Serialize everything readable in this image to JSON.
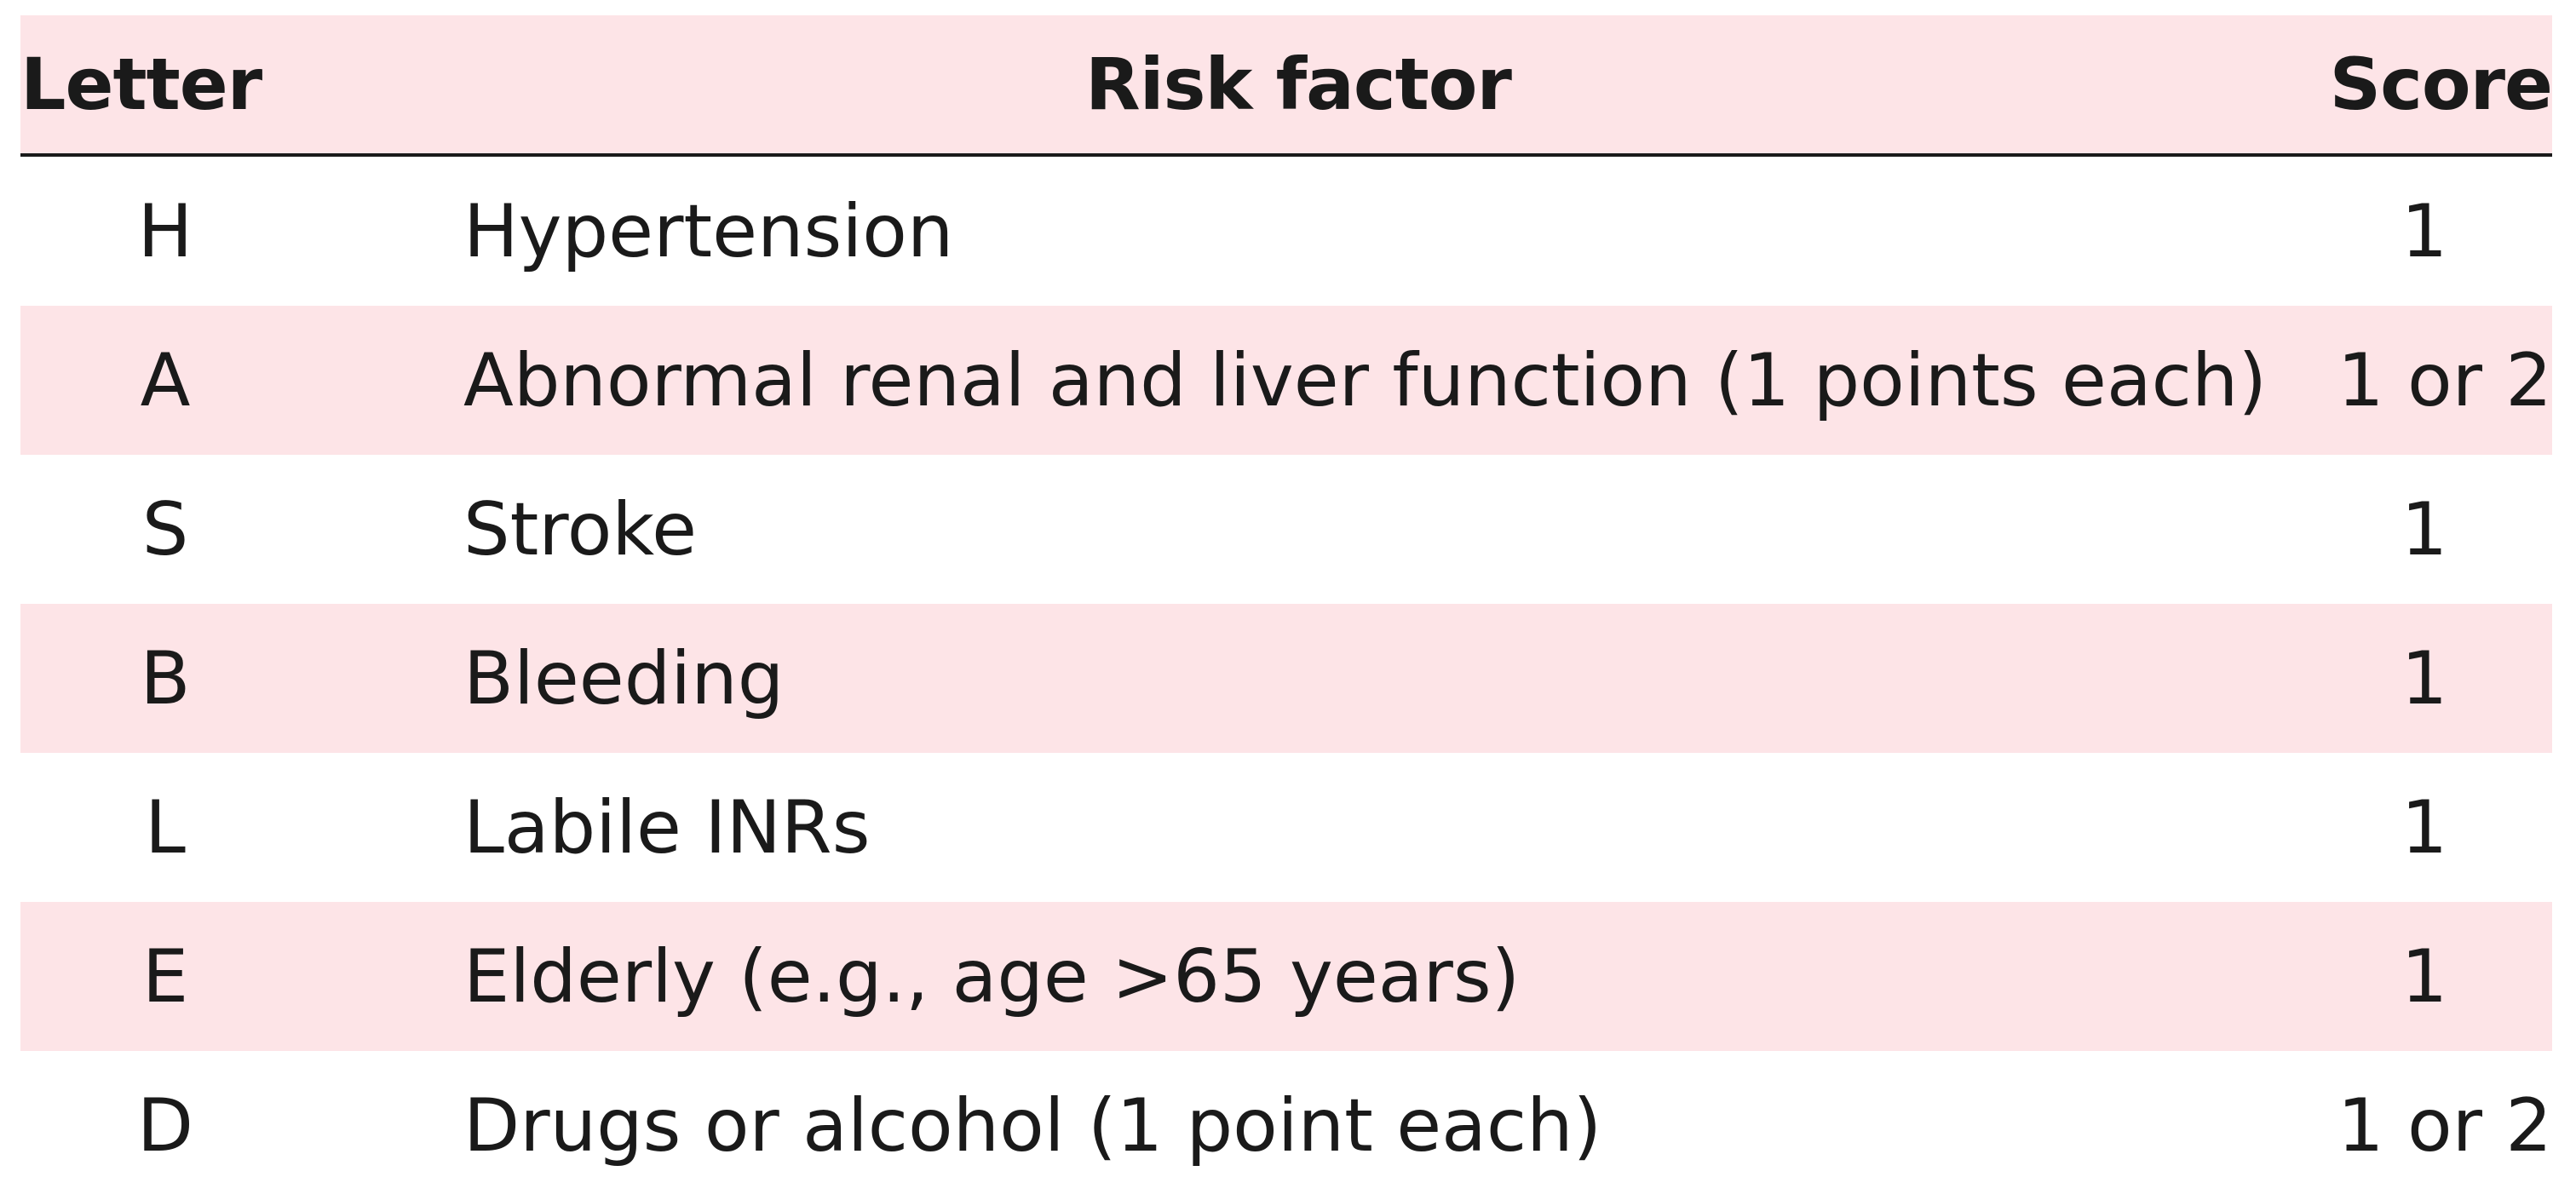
{
  "table": {
    "headers": {
      "letter": "Letter",
      "risk_factor": "Risk factor",
      "score": "Score"
    },
    "rows": [
      {
        "letter": "H",
        "risk_factor": "Hypertension",
        "score": "1"
      },
      {
        "letter": "A",
        "risk_factor": "Abnormal renal and liver function (1 points each)",
        "score": "1 or 2"
      },
      {
        "letter": "S",
        "risk_factor": "Stroke",
        "score": "1"
      },
      {
        "letter": "B",
        "risk_factor": "Bleeding",
        "score": "1"
      },
      {
        "letter": "L",
        "risk_factor": "Labile INRs",
        "score": "1"
      },
      {
        "letter": "E",
        "risk_factor": "Elderly (e.g., age >65 years)",
        "score": "1"
      },
      {
        "letter": "D",
        "risk_factor": "Drugs or alcohol (1 point each)",
        "score": "1 or 2"
      }
    ]
  },
  "colors": {
    "row_shade": "#fde4e7",
    "text": "#1a1a1a",
    "rule": "#1a1a1a"
  }
}
